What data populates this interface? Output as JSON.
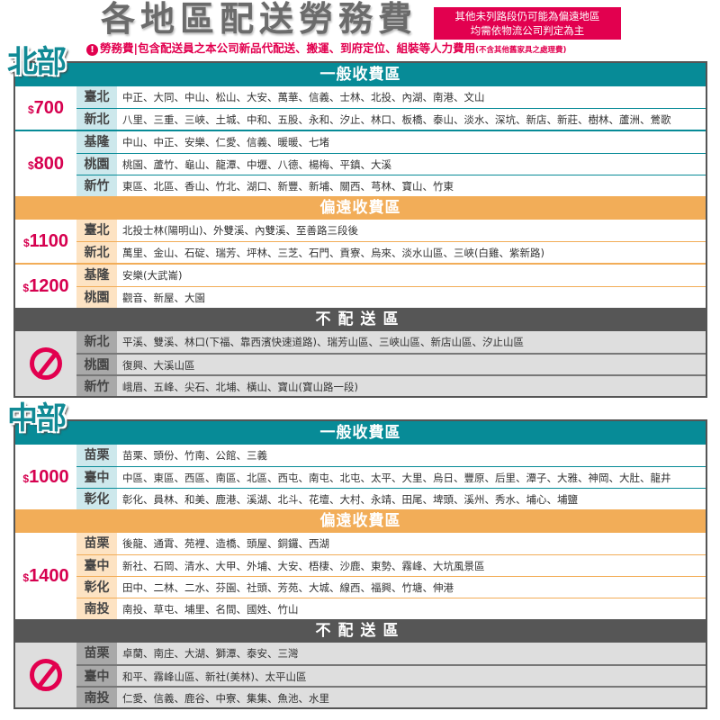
{
  "header": {
    "title": "各地區配送勞務費",
    "note_line1": "其他未列路段仍可能為偏遠地區",
    "note_line2": "均需依物流公司判定為主",
    "notice_icon": "exclamation-icon",
    "notice_main": "勞務費|包含配送員之本公司新品代配送、搬運、到府定位、組裝等人力費用",
    "notice_small": "(不含其他舊家具之處理費)"
  },
  "colors": {
    "general": "#078b97",
    "remote": "#f2ad58",
    "none": "#565656",
    "price": "#d6004f"
  },
  "regions": [
    {
      "name": "北部",
      "groups": [
        {
          "type": "general",
          "header": "一般收費區",
          "tiers": [
            {
              "price": "700",
              "rows": [
                {
                  "city": "臺北",
                  "areas": "中正、大同、中山、松山、大安、萬華、信義、士林、北投、內湖、南港、文山"
                },
                {
                  "city": "新北",
                  "areas": "八里、三重、三峽、土城、中和、五股、永和、汐止、林口、板橋、泰山、淡水、深坑、新店、新莊、樹林、蘆洲、鶯歌"
                }
              ]
            },
            {
              "price": "800",
              "rows": [
                {
                  "city": "基隆",
                  "areas": "中山、中正、安樂、仁愛、信義、暖暖、七堵"
                },
                {
                  "city": "桃園",
                  "areas": "桃園、蘆竹、龜山、龍潭、中壢、八德、楊梅、平鎮、大溪"
                },
                {
                  "city": "新竹",
                  "areas": "東區、北區、香山、竹北、湖口、新豐、新埔、關西、芎林、寶山、竹東"
                }
              ]
            }
          ]
        },
        {
          "type": "remote",
          "header": "偏遠收費區",
          "tiers": [
            {
              "price": "1100",
              "rows": [
                {
                  "city": "臺北",
                  "areas": "北投士林(陽明山)、外雙溪、內雙溪、至善路三段後"
                },
                {
                  "city": "新北",
                  "areas": "萬里、金山、石碇、瑞芳、坪林、三芝、石門、貢寮、烏來、淡水山區、三峽(白雞、紫新路)"
                }
              ]
            },
            {
              "price": "1200",
              "rows": [
                {
                  "city": "基隆",
                  "areas": "安樂(大武崙)"
                },
                {
                  "city": "桃園",
                  "areas": "觀音、新屋、大園"
                }
              ]
            }
          ]
        },
        {
          "type": "none",
          "header": "不配送區",
          "tiers": [
            {
              "price": "",
              "icon": "no-entry-icon",
              "rows": [
                {
                  "city": "新北",
                  "areas": "平溪、雙溪、林口(下福、靠西濱快速道路)、瑞芳山區、三峽山區、新店山區、汐止山區"
                },
                {
                  "city": "桃園",
                  "areas": "復興、大溪山區"
                },
                {
                  "city": "新竹",
                  "areas": "峨眉、五峰、尖石、北埔、橫山、寶山(寶山路一段)"
                }
              ]
            }
          ]
        }
      ]
    },
    {
      "name": "中部",
      "groups": [
        {
          "type": "general",
          "header": "一般收費區",
          "tiers": [
            {
              "price": "1000",
              "rows": [
                {
                  "city": "苗栗",
                  "areas": "苗栗、頭份、竹南、公館、三義"
                },
                {
                  "city": "臺中",
                  "areas": "中區、東區、西區、南區、北區、西屯、南屯、北屯、太平、大里、烏日、豐原、后里、潭子、大雅、神岡、大肚、龍井"
                },
                {
                  "city": "彰化",
                  "areas": "彰化、員林、和美、鹿港、溪湖、北斗、花壇、大村、永靖、田尾、埤頭、溪州、秀水、埔心、埔鹽"
                }
              ]
            }
          ]
        },
        {
          "type": "remote",
          "header": "偏遠收費區",
          "tiers": [
            {
              "price": "1400",
              "rows": [
                {
                  "city": "苗栗",
                  "areas": "後龍、通霄、苑裡、造橋、頭屋、銅鑼、西湖"
                },
                {
                  "city": "臺中",
                  "areas": "新社、石岡、清水、大甲、外埔、大安、梧棲、沙鹿、東勢、霧峰、大坑風景區"
                },
                {
                  "city": "彰化",
                  "areas": "田中、二林、二水、芬園、社頭、芳苑、大城、線西、福興、竹塘、伸港"
                },
                {
                  "city": "南投",
                  "areas": "南投、草屯、埔里、名間、國姓、竹山"
                }
              ]
            }
          ]
        },
        {
          "type": "none",
          "header": "不配送區",
          "tiers": [
            {
              "price": "",
              "icon": "no-entry-icon",
              "rows": [
                {
                  "city": "苗栗",
                  "areas": "卓蘭、南庄、大湖、獅潭、泰安、三灣"
                },
                {
                  "city": "臺中",
                  "areas": "和平、霧峰山區、新社(美林)、太平山區"
                },
                {
                  "city": "南投",
                  "areas": "仁愛、信義、鹿谷、中寮、集集、魚池、水里"
                }
              ]
            }
          ]
        }
      ]
    }
  ]
}
